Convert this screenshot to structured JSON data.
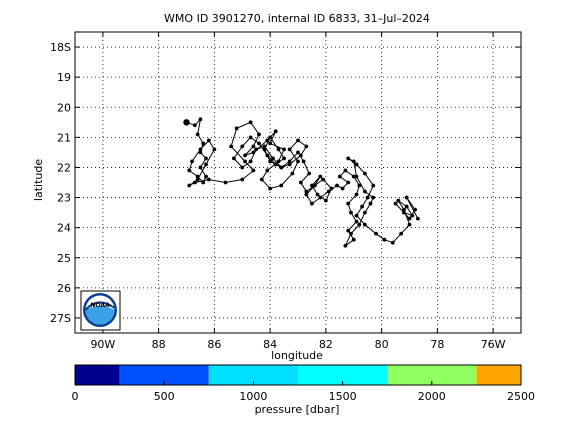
{
  "title": "WMO ID 3901270, internal ID 6833, 31–Jul–2024",
  "logo": {
    "text": "NOAA",
    "icon": "noaa-logo"
  },
  "colors": {
    "track": "#000000",
    "grid": "#000000",
    "logo_blue": "#0a3d91",
    "logo_sky": "#3aa0e8"
  },
  "chart_data": [
    {
      "type": "line",
      "title": "WMO ID 3901270, internal ID 6833, 31–Jul–2024",
      "xlabel": "longitude",
      "ylabel": "latitude",
      "xlim": [
        -91,
        -75
      ],
      "ylim": [
        -27.5,
        -17.5
      ],
      "y_direction": "north-up (south latitudes increase downward)",
      "grid": true,
      "x_ticks": [
        {
          "value": -90,
          "label": "90W"
        },
        {
          "value": -88,
          "label": "88"
        },
        {
          "value": -86,
          "label": "86"
        },
        {
          "value": -84,
          "label": "84"
        },
        {
          "value": -82,
          "label": "82"
        },
        {
          "value": -80,
          "label": "80"
        },
        {
          "value": -78,
          "label": "78"
        },
        {
          "value": -76,
          "label": "76W"
        }
      ],
      "y_ticks": [
        {
          "value": -18,
          "label": "18S"
        },
        {
          "value": -19,
          "label": "19"
        },
        {
          "value": -20,
          "label": "20"
        },
        {
          "value": -21,
          "label": "21"
        },
        {
          "value": -22,
          "label": "22"
        },
        {
          "value": -23,
          "label": "23"
        },
        {
          "value": -24,
          "label": "24"
        },
        {
          "value": -25,
          "label": "25"
        },
        {
          "value": -26,
          "label": "26"
        },
        {
          "value": -27,
          "label": "27S"
        }
      ],
      "series": [
        {
          "x": [
            -87.0,
            -86.7,
            -86.5,
            -86.6,
            -86.4,
            -86.5,
            -86.3,
            -86.5,
            -86.3,
            -86.4,
            -86.6,
            -86.9,
            -86.8,
            -86.5,
            -86.2,
            -86.0,
            -86.3,
            -86.6,
            -86.9,
            -86.7,
            -86.2,
            -85.6,
            -85.0,
            -84.6,
            -84.9,
            -85.4,
            -85.2,
            -84.7,
            -84.4,
            -84.6,
            -84.9,
            -84.6,
            -84.1,
            -83.8,
            -84.0,
            -83.5,
            -83.7,
            -84.1,
            -84.3,
            -84.0,
            -83.6,
            -83.2,
            -83.0,
            -83.3,
            -83.0,
            -82.7,
            -82.9,
            -83.3,
            -83.6,
            -84.0,
            -84.2,
            -84.0,
            -83.7,
            -83.5,
            -83.8,
            -84.1,
            -84.4,
            -84.7,
            -85.0,
            -85.3,
            -85.0,
            -84.7,
            -84.5,
            -84.2,
            -83.9,
            -83.6,
            -83.3,
            -83.0,
            -82.8,
            -82.6,
            -82.9,
            -82.7,
            -82.4,
            -82.2,
            -82.5,
            -82.3,
            -82.0,
            -81.8,
            -82.1,
            -82.4,
            -82.7,
            -82.5,
            -82.2,
            -81.9,
            -81.6,
            -81.4,
            -81.2,
            -81.5,
            -81.3,
            -81.0,
            -80.8,
            -80.9,
            -81.2,
            -81.1,
            -80.9,
            -81.2,
            -81.0,
            -81.3,
            -81.1,
            -80.8,
            -80.6,
            -80.4,
            -80.3,
            -80.6,
            -80.9,
            -81.0,
            -81.2,
            -80.9,
            -80.6,
            -80.3,
            -80.5,
            -80.7,
            -80.9,
            -80.6,
            -80.2,
            -79.9,
            -79.6,
            -79.3,
            -79.0,
            -79.2,
            -79.4,
            -79.1,
            -78.9,
            -79.2,
            -79.5,
            -79.0,
            -78.8,
            -79.1,
            -78.7
          ],
          "y": [
            -20.5,
            -20.6,
            -20.4,
            -20.9,
            -21.2,
            -21.5,
            -21.7,
            -22.0,
            -22.3,
            -22.5,
            -22.3,
            -22.1,
            -21.8,
            -21.4,
            -21.1,
            -21.4,
            -21.9,
            -22.4,
            -22.6,
            -22.5,
            -22.4,
            -22.5,
            -22.4,
            -22.1,
            -21.8,
            -21.3,
            -20.7,
            -20.5,
            -20.9,
            -21.3,
            -21.6,
            -21.5,
            -21.1,
            -20.8,
            -21.2,
            -21.4,
            -21.8,
            -22.1,
            -22.4,
            -22.7,
            -22.6,
            -22.2,
            -21.8,
            -21.4,
            -21.1,
            -21.3,
            -21.6,
            -21.9,
            -22.0,
            -21.8,
            -21.4,
            -21.0,
            -21.4,
            -21.7,
            -21.9,
            -21.6,
            -21.2,
            -21.0,
            -21.3,
            -21.7,
            -22.0,
            -21.8,
            -21.4,
            -21.3,
            -21.7,
            -22.0,
            -21.8,
            -21.5,
            -21.8,
            -22.2,
            -22.5,
            -22.8,
            -22.6,
            -22.3,
            -22.6,
            -22.9,
            -23.1,
            -22.7,
            -22.4,
            -22.6,
            -22.9,
            -23.2,
            -23.0,
            -22.8,
            -22.6,
            -22.7,
            -22.5,
            -22.3,
            -22.1,
            -22.3,
            -22.6,
            -22.9,
            -23.2,
            -23.5,
            -23.8,
            -24.1,
            -24.4,
            -24.6,
            -24.2,
            -23.9,
            -23.5,
            -23.2,
            -23.0,
            -22.8,
            -22.3,
            -21.8,
            -21.7,
            -21.9,
            -22.2,
            -22.6,
            -23.0,
            -23.3,
            -23.6,
            -23.9,
            -24.2,
            -24.4,
            -24.5,
            -24.2,
            -23.9,
            -23.4,
            -23.1,
            -23.3,
            -23.6,
            -23.5,
            -23.2,
            -23.7,
            -23.4,
            -23.0,
            -23.7
          ]
        }
      ],
      "colorbar": {
        "label": "pressure [dbar]",
        "ticks": [
          0,
          500,
          1000,
          1500,
          2000,
          2500
        ],
        "segments": [
          {
            "from": 0,
            "to": 250,
            "color": "#00008f"
          },
          {
            "from": 250,
            "to": 750,
            "color": "#0050ff"
          },
          {
            "from": 750,
            "to": 1250,
            "color": "#00dfff"
          },
          {
            "from": 1250,
            "to": 1750,
            "color": "#00ffff"
          },
          {
            "from": 1750,
            "to": 2250,
            "color": "#90ff60"
          },
          {
            "from": 2250,
            "to": 2500,
            "color": "#ffa500"
          }
        ]
      }
    }
  ]
}
